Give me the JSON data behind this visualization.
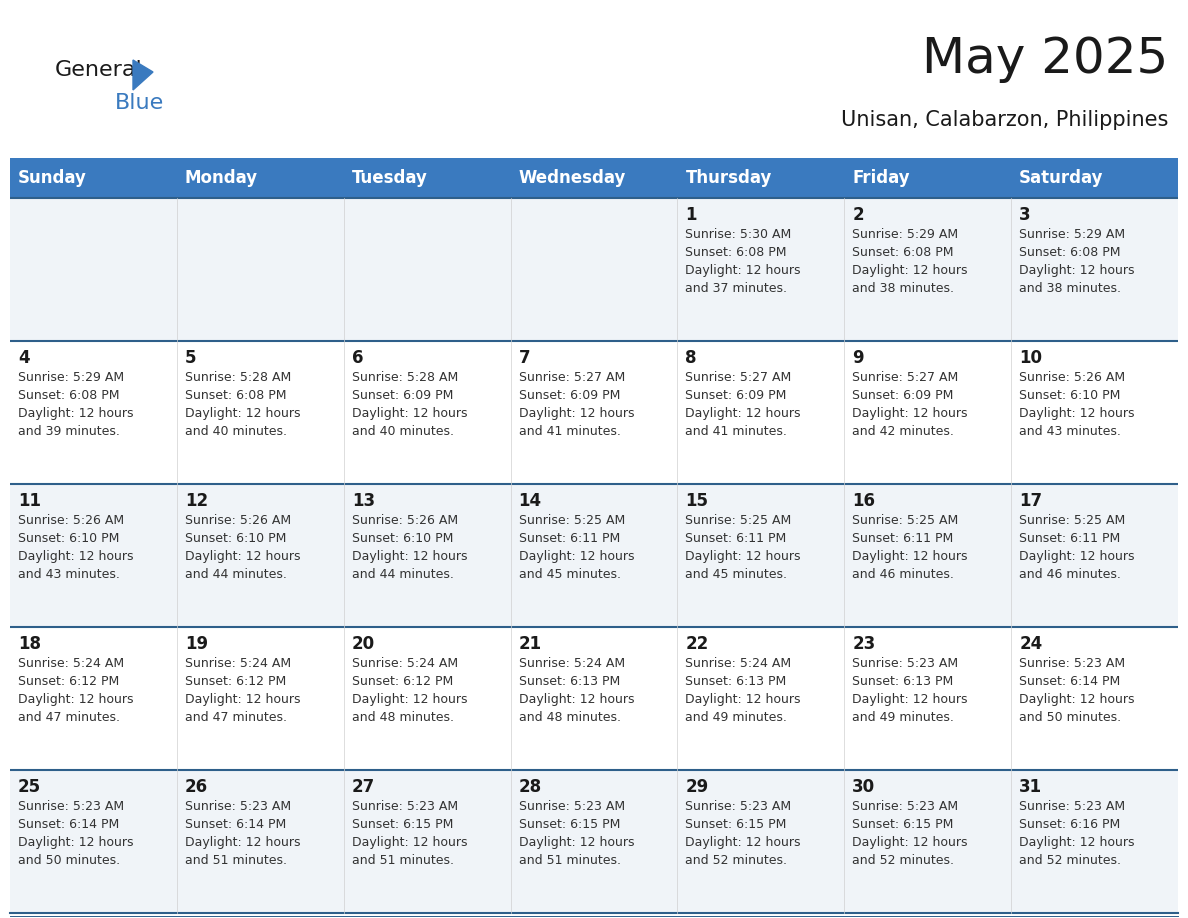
{
  "title": "May 2025",
  "subtitle": "Unisan, Calabarzon, Philippines",
  "header_bg_color": "#3a7abf",
  "header_text_color": "#ffffff",
  "row0_bg": "#f0f4f8",
  "row1_bg": "#ffffff",
  "separator_color": "#2e5f8a",
  "day_headers": [
    "Sunday",
    "Monday",
    "Tuesday",
    "Wednesday",
    "Thursday",
    "Friday",
    "Saturday"
  ],
  "calendar_data": [
    [
      null,
      null,
      null,
      null,
      {
        "day": 1,
        "sunrise": "5:30 AM",
        "sunset": "6:08 PM",
        "daylight": "12 hours and 37 minutes."
      },
      {
        "day": 2,
        "sunrise": "5:29 AM",
        "sunset": "6:08 PM",
        "daylight": "12 hours and 38 minutes."
      },
      {
        "day": 3,
        "sunrise": "5:29 AM",
        "sunset": "6:08 PM",
        "daylight": "12 hours and 38 minutes."
      }
    ],
    [
      {
        "day": 4,
        "sunrise": "5:29 AM",
        "sunset": "6:08 PM",
        "daylight": "12 hours and 39 minutes."
      },
      {
        "day": 5,
        "sunrise": "5:28 AM",
        "sunset": "6:08 PM",
        "daylight": "12 hours and 40 minutes."
      },
      {
        "day": 6,
        "sunrise": "5:28 AM",
        "sunset": "6:09 PM",
        "daylight": "12 hours and 40 minutes."
      },
      {
        "day": 7,
        "sunrise": "5:27 AM",
        "sunset": "6:09 PM",
        "daylight": "12 hours and 41 minutes."
      },
      {
        "day": 8,
        "sunrise": "5:27 AM",
        "sunset": "6:09 PM",
        "daylight": "12 hours and 41 minutes."
      },
      {
        "day": 9,
        "sunrise": "5:27 AM",
        "sunset": "6:09 PM",
        "daylight": "12 hours and 42 minutes."
      },
      {
        "day": 10,
        "sunrise": "5:26 AM",
        "sunset": "6:10 PM",
        "daylight": "12 hours and 43 minutes."
      }
    ],
    [
      {
        "day": 11,
        "sunrise": "5:26 AM",
        "sunset": "6:10 PM",
        "daylight": "12 hours and 43 minutes."
      },
      {
        "day": 12,
        "sunrise": "5:26 AM",
        "sunset": "6:10 PM",
        "daylight": "12 hours and 44 minutes."
      },
      {
        "day": 13,
        "sunrise": "5:26 AM",
        "sunset": "6:10 PM",
        "daylight": "12 hours and 44 minutes."
      },
      {
        "day": 14,
        "sunrise": "5:25 AM",
        "sunset": "6:11 PM",
        "daylight": "12 hours and 45 minutes."
      },
      {
        "day": 15,
        "sunrise": "5:25 AM",
        "sunset": "6:11 PM",
        "daylight": "12 hours and 45 minutes."
      },
      {
        "day": 16,
        "sunrise": "5:25 AM",
        "sunset": "6:11 PM",
        "daylight": "12 hours and 46 minutes."
      },
      {
        "day": 17,
        "sunrise": "5:25 AM",
        "sunset": "6:11 PM",
        "daylight": "12 hours and 46 minutes."
      }
    ],
    [
      {
        "day": 18,
        "sunrise": "5:24 AM",
        "sunset": "6:12 PM",
        "daylight": "12 hours and 47 minutes."
      },
      {
        "day": 19,
        "sunrise": "5:24 AM",
        "sunset": "6:12 PM",
        "daylight": "12 hours and 47 minutes."
      },
      {
        "day": 20,
        "sunrise": "5:24 AM",
        "sunset": "6:12 PM",
        "daylight": "12 hours and 48 minutes."
      },
      {
        "day": 21,
        "sunrise": "5:24 AM",
        "sunset": "6:13 PM",
        "daylight": "12 hours and 48 minutes."
      },
      {
        "day": 22,
        "sunrise": "5:24 AM",
        "sunset": "6:13 PM",
        "daylight": "12 hours and 49 minutes."
      },
      {
        "day": 23,
        "sunrise": "5:23 AM",
        "sunset": "6:13 PM",
        "daylight": "12 hours and 49 minutes."
      },
      {
        "day": 24,
        "sunrise": "5:23 AM",
        "sunset": "6:14 PM",
        "daylight": "12 hours and 50 minutes."
      }
    ],
    [
      {
        "day": 25,
        "sunrise": "5:23 AM",
        "sunset": "6:14 PM",
        "daylight": "12 hours and 50 minutes."
      },
      {
        "day": 26,
        "sunrise": "5:23 AM",
        "sunset": "6:14 PM",
        "daylight": "12 hours and 51 minutes."
      },
      {
        "day": 27,
        "sunrise": "5:23 AM",
        "sunset": "6:15 PM",
        "daylight": "12 hours and 51 minutes."
      },
      {
        "day": 28,
        "sunrise": "5:23 AM",
        "sunset": "6:15 PM",
        "daylight": "12 hours and 51 minutes."
      },
      {
        "day": 29,
        "sunrise": "5:23 AM",
        "sunset": "6:15 PM",
        "daylight": "12 hours and 52 minutes."
      },
      {
        "day": 30,
        "sunrise": "5:23 AM",
        "sunset": "6:15 PM",
        "daylight": "12 hours and 52 minutes."
      },
      {
        "day": 31,
        "sunrise": "5:23 AM",
        "sunset": "6:16 PM",
        "daylight": "12 hours and 52 minutes."
      }
    ]
  ],
  "title_fontsize": 36,
  "subtitle_fontsize": 15,
  "header_fontsize": 12,
  "day_num_fontsize": 12,
  "cell_text_fontsize": 9
}
